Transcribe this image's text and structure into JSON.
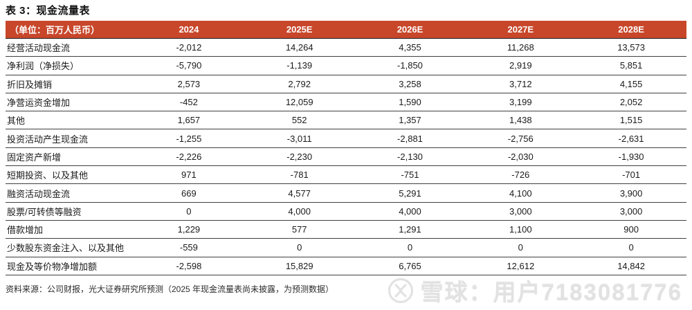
{
  "page": {
    "title": "表 3：现金流量表",
    "source_note": "资料来源：公司财报，光大证券研究所预测（2025 年现金流量表尚未披露，为预测数据）"
  },
  "table": {
    "unit_label": "（单位：百万人民币）",
    "columns": [
      "2024",
      "2025E",
      "2026E",
      "2027E",
      "2028E"
    ],
    "rows": [
      {
        "label": "经营活动现金流",
        "values": [
          "-2,012",
          "14,264",
          "4,355",
          "11,268",
          "13,573"
        ]
      },
      {
        "label": "净利润（净损失）",
        "values": [
          "-5,790",
          "-1,139",
          "-1,850",
          "2,919",
          "5,851"
        ]
      },
      {
        "label": "折旧及摊销",
        "values": [
          "2,573",
          "2,792",
          "3,258",
          "3,712",
          "4,155"
        ]
      },
      {
        "label": "净营运资金增加",
        "values": [
          "-452",
          "12,059",
          "1,590",
          "3,199",
          "2,052"
        ]
      },
      {
        "label": "其他",
        "values": [
          "1,657",
          "552",
          "1,357",
          "1,438",
          "1,515"
        ]
      },
      {
        "label": "投资活动产生现金流",
        "values": [
          "-1,255",
          "-3,011",
          "-2,881",
          "-2,756",
          "-2,631"
        ]
      },
      {
        "label": "固定资产新增",
        "values": [
          "-2,226",
          "-2,230",
          "-2,130",
          "-2,030",
          "-1,930"
        ]
      },
      {
        "label": "短期投资、以及其他",
        "values": [
          "971",
          "-781",
          "-751",
          "-726",
          "-701"
        ]
      },
      {
        "label": "融资活动现金流",
        "values": [
          "669",
          "4,577",
          "5,291",
          "4,100",
          "3,900"
        ]
      },
      {
        "label": "股票/可转债等融资",
        "values": [
          "0",
          "4,000",
          "4,000",
          "3,000",
          "3,000"
        ]
      },
      {
        "label": "借款增加",
        "values": [
          "1,229",
          "577",
          "1,291",
          "1,100",
          "900"
        ]
      },
      {
        "label": "少数股东资金注入、以及其他",
        "values": [
          "-559",
          "0",
          "0",
          "0",
          "0"
        ]
      },
      {
        "label": "现金及等价物净增加额",
        "values": [
          "-2,598",
          "15,829",
          "6,765",
          "12,612",
          "14,842"
        ]
      }
    ]
  },
  "watermark": {
    "text": "雪球：用户7183081776",
    "logo_icon": "xueqiu-snowball-icon"
  },
  "colors": {
    "header_bg": "#C8472B",
    "header_text": "#FFFFFF",
    "row_border": "#3F3F3F",
    "body_text": "#1A1A1A",
    "watermark": "#E2E2E2"
  }
}
